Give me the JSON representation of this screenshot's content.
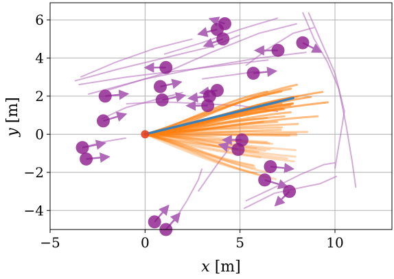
{
  "chart_data": {
    "type": "scatter",
    "title": "",
    "xlabel_var": "x",
    "xlabel_unit": "[m]",
    "ylabel_var": "y",
    "ylabel_unit": "[m]",
    "xlim": [
      -5,
      13
    ],
    "ylim": [
      -5,
      6.9
    ],
    "xticks": [
      -5,
      0,
      5,
      10
    ],
    "yticks": [
      -4,
      -2,
      0,
      2,
      4,
      6
    ],
    "grid": true,
    "colors": {
      "pedestrian": "#8b1a8b",
      "ped_track": "#b068b8",
      "sample": "#ff8010",
      "mean_path": "#3a7fb8",
      "robot": "#e84020"
    },
    "robot_position": [
      0,
      0
    ],
    "mean_path": {
      "x": [
        0,
        7.8
      ],
      "y": [
        0,
        1.9
      ]
    },
    "sample_fan": {
      "origin": [
        0,
        0
      ],
      "count": 46,
      "end_x_range": [
        4.2,
        10.0
      ],
      "end_y_range": [
        -2.2,
        2.6
      ],
      "dense_end": [
        7.8,
        1.9
      ]
    },
    "pedestrians": [
      {
        "x": 4.2,
        "y": 5.8,
        "vx": -0.6,
        "vy": 0.2
      },
      {
        "x": 3.8,
        "y": 5.5,
        "vx": -0.8,
        "vy": -0.2
      },
      {
        "x": 4.1,
        "y": 5.0,
        "vx": -0.8,
        "vy": -0.3
      },
      {
        "x": 7.0,
        "y": 4.4,
        "vx": -1.0,
        "vy": 0.0
      },
      {
        "x": 8.3,
        "y": 4.8,
        "vx": 0.8,
        "vy": -0.4
      },
      {
        "x": 1.1,
        "y": 3.5,
        "vx": -0.9,
        "vy": 0.0
      },
      {
        "x": 5.7,
        "y": 3.2,
        "vx": 1.0,
        "vy": 0.1
      },
      {
        "x": 0.8,
        "y": 2.5,
        "vx": 0.9,
        "vy": 0.2
      },
      {
        "x": 3.8,
        "y": 2.3,
        "vx": -0.7,
        "vy": -0.1
      },
      {
        "x": 3.4,
        "y": 2.0,
        "vx": -0.9,
        "vy": -0.1
      },
      {
        "x": -2.1,
        "y": 2.0,
        "vx": 1.0,
        "vy": 0.1
      },
      {
        "x": 0.9,
        "y": 1.8,
        "vx": 1.0,
        "vy": 0.2
      },
      {
        "x": 3.3,
        "y": 1.5,
        "vx": -0.9,
        "vy": 0.0
      },
      {
        "x": -2.2,
        "y": 0.7,
        "vx": 1.0,
        "vy": 0.3
      },
      {
        "x": 5.1,
        "y": -0.3,
        "vx": -0.8,
        "vy": 0.0
      },
      {
        "x": 4.9,
        "y": -0.8,
        "vx": -0.8,
        "vy": 0.2
      },
      {
        "x": -3.3,
        "y": -0.7,
        "vx": 1.0,
        "vy": 0.2
      },
      {
        "x": -3.1,
        "y": -1.3,
        "vx": 1.0,
        "vy": 0.1
      },
      {
        "x": 6.6,
        "y": -1.7,
        "vx": 1.0,
        "vy": -0.1
      },
      {
        "x": 6.3,
        "y": -2.4,
        "vx": 1.0,
        "vy": -0.3
      },
      {
        "x": 7.6,
        "y": -3.0,
        "vx": -0.6,
        "vy": -0.6
      },
      {
        "x": 0.5,
        "y": -4.6,
        "vx": 0.6,
        "vy": 0.7
      },
      {
        "x": 1.1,
        "y": -5.0,
        "vx": 0.6,
        "vy": 0.7
      }
    ],
    "ped_tracks": [
      [
        [
          -3.7,
          2.8
        ],
        [
          -1.5,
          3.4
        ],
        [
          1.0,
          4.0
        ],
        [
          3.5,
          4.6
        ],
        [
          5.0,
          5.2
        ]
      ],
      [
        [
          -3.5,
          2.6
        ],
        [
          -1.0,
          3.0
        ],
        [
          1.5,
          3.3
        ],
        [
          4.0,
          3.6
        ],
        [
          6.5,
          3.9
        ]
      ],
      [
        [
          -3.0,
          2.1
        ],
        [
          0.0,
          2.9
        ],
        [
          3.0,
          3.5
        ],
        [
          6.0,
          4.0
        ],
        [
          8.5,
          4.3
        ]
      ],
      [
        [
          -2.0,
          2.3
        ],
        [
          1.0,
          3.2
        ],
        [
          3.5,
          4.3
        ],
        [
          6.0,
          5.3
        ],
        [
          8.0,
          5.8
        ]
      ],
      [
        [
          1.0,
          4.2
        ],
        [
          3.0,
          4.8
        ],
        [
          5.0,
          5.5
        ],
        [
          7.0,
          6.1
        ]
      ],
      [
        [
          -3.4,
          3.0
        ],
        [
          -1.5,
          3.8
        ],
        [
          0.5,
          4.5
        ],
        [
          2.5,
          5.0
        ]
      ],
      [
        [
          5.3,
          3.6
        ],
        [
          6.5,
          4.5
        ],
        [
          7.8,
          5.3
        ],
        [
          8.9,
          5.6
        ]
      ],
      [
        [
          8.3,
          6.4
        ],
        [
          8.9,
          5.0
        ],
        [
          9.6,
          3.8
        ],
        [
          10.2,
          2.4
        ],
        [
          10.6,
          0.4
        ],
        [
          10.9,
          -1.4
        ],
        [
          11.1,
          -2.8
        ]
      ],
      [
        [
          8.6,
          6.4
        ],
        [
          9.3,
          4.8
        ],
        [
          10.0,
          3.2
        ],
        [
          10.5,
          1.2
        ],
        [
          10.2,
          -0.6
        ],
        [
          10.0,
          -1.8
        ]
      ],
      [
        [
          5.2,
          -3.9
        ],
        [
          6.8,
          -3.1
        ],
        [
          8.2,
          -2.8
        ],
        [
          9.2,
          -2.6
        ],
        [
          10.1,
          -2.2
        ]
      ],
      [
        [
          5.3,
          -3.5
        ],
        [
          6.8,
          -2.8
        ],
        [
          8.2,
          -2.1
        ],
        [
          9.4,
          -1.6
        ],
        [
          10.0,
          -1.5
        ]
      ],
      [
        [
          2.8,
          -3.0
        ],
        [
          3.5,
          -2.0
        ],
        [
          4.0,
          -1.3
        ],
        [
          4.4,
          -0.8
        ]
      ],
      [
        [
          1.5,
          -4.6
        ],
        [
          2.2,
          -3.5
        ],
        [
          2.8,
          -2.4
        ],
        [
          3.0,
          -1.8
        ]
      ],
      [
        [
          -2.3,
          0.8
        ],
        [
          -1.0,
          1.4
        ],
        [
          0.5,
          1.8
        ],
        [
          2.0,
          2.2
        ]
      ],
      [
        [
          -3.3,
          -0.7
        ],
        [
          -2.2,
          -0.4
        ],
        [
          -1.0,
          -0.2
        ]
      ],
      [
        [
          -1.0,
          1.6
        ],
        [
          1.0,
          1.7
        ],
        [
          3.0,
          1.6
        ],
        [
          5.0,
          1.5
        ],
        [
          7.0,
          1.2
        ]
      ],
      [
        [
          3.0,
          2.9
        ],
        [
          4.5,
          3.1
        ],
        [
          6.0,
          3.3
        ]
      ]
    ]
  }
}
